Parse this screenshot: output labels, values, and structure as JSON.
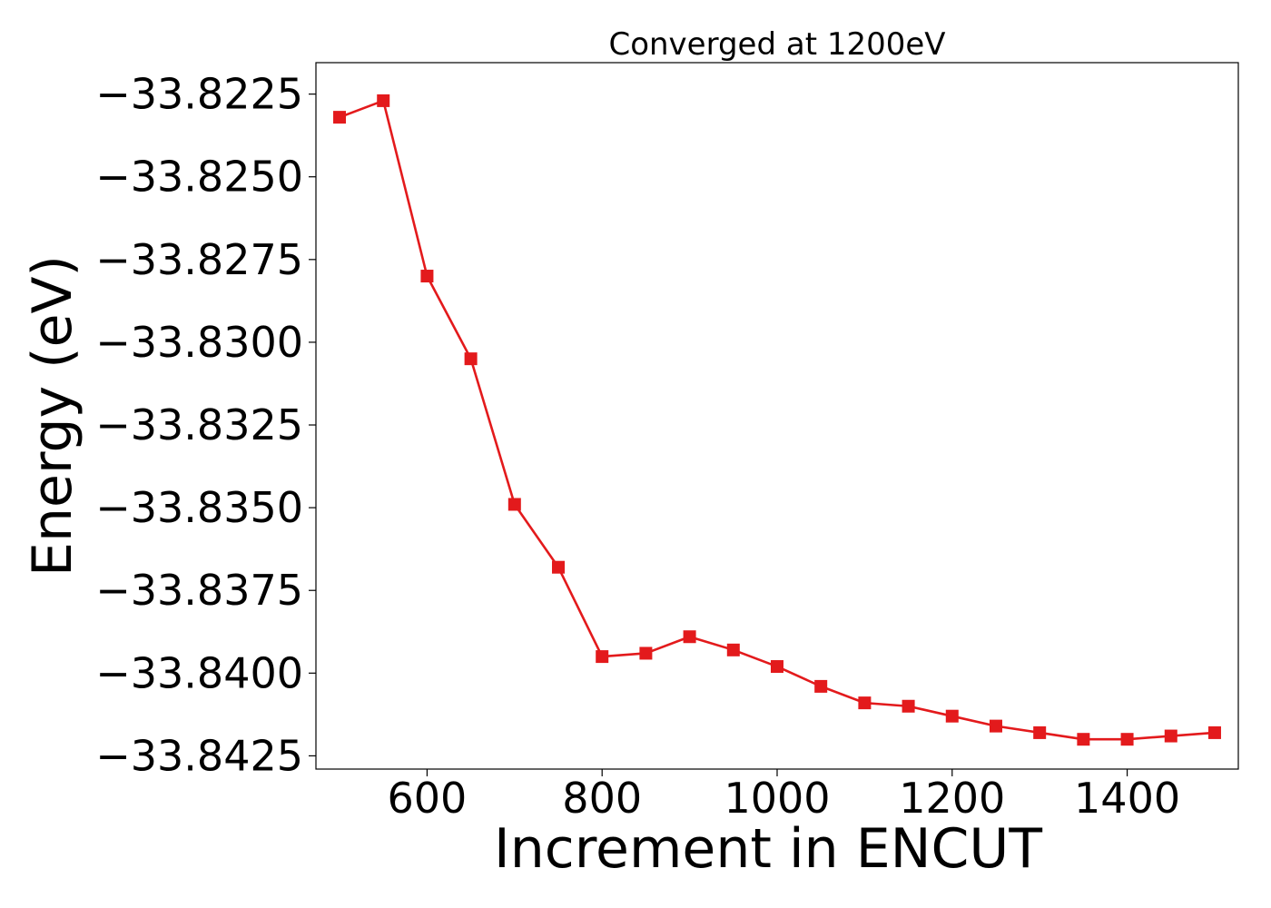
{
  "chart_data": {
    "type": "line",
    "title": "Converged at 1200eV",
    "xlabel": "Increment in ENCUT",
    "ylabel": "Energy (eV)",
    "xlim": [
      473,
      1527
    ],
    "ylim": [
      -33.8429,
      -33.82155
    ],
    "xticks": [
      600,
      800,
      1000,
      1200,
      1400
    ],
    "xtick_labels": [
      "600",
      "800",
      "1000",
      "1200",
      "1400"
    ],
    "yticks": [
      -33.8225,
      -33.825,
      -33.8275,
      -33.83,
      -33.8325,
      -33.835,
      -33.8375,
      -33.84,
      -33.8425
    ],
    "ytick_labels": [
      "−33.8225",
      "−33.8250",
      "−33.8275",
      "−33.8300",
      "−33.8325",
      "−33.8350",
      "−33.8375",
      "−33.8400",
      "−33.8425"
    ],
    "grid": false,
    "series": [
      {
        "color": "#e31a1c",
        "marker": "square",
        "x": [
          500,
          550,
          600,
          650,
          700,
          750,
          800,
          850,
          900,
          950,
          1000,
          1050,
          1100,
          1150,
          1200,
          1250,
          1300,
          1350,
          1400,
          1450,
          1500
        ],
        "y": [
          -33.8232,
          -33.8227,
          -33.828,
          -33.8305,
          -33.8349,
          -33.8368,
          -33.8395,
          -33.8394,
          -33.8389,
          -33.8393,
          -33.8398,
          -33.8404,
          -33.8409,
          -33.841,
          -33.8413,
          -33.8416,
          -33.8418,
          -33.842,
          -33.842,
          -33.8419,
          -33.8418
        ]
      }
    ]
  }
}
